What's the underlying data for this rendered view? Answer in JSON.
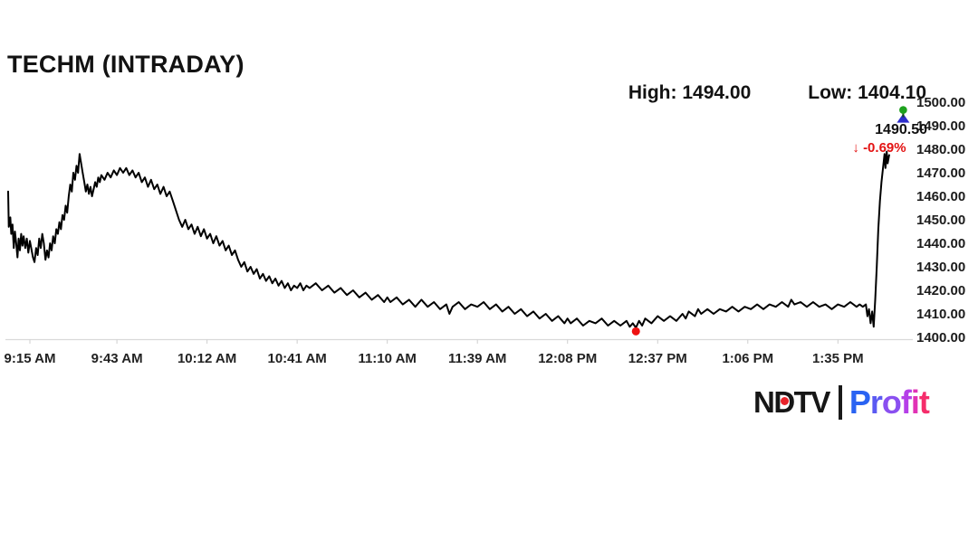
{
  "title": "TECHM (INTRADAY)",
  "stats": {
    "high": "High: 1494.00",
    "low": "Low: 1404.10"
  },
  "annotation": {
    "price": "1490.50",
    "arrow": "↓",
    "change": "-0.69%",
    "color": "#e31212"
  },
  "logo": {
    "ndtv": "NDTV",
    "profit": "Profit",
    "profit_colors": [
      "#2a63f2",
      "#5b5af2",
      "#8a50f0",
      "#b53fe8",
      "#e132b5",
      "#f52d6b"
    ],
    "dot_color": "#e8232a"
  },
  "chart_data": {
    "type": "line",
    "title": "TECHM (INTRADAY)",
    "session_high": 1494.0,
    "session_low": 1404.1,
    "last_price": 1490.5,
    "change_pct": -0.69,
    "line_color": "#000000",
    "ylim": [
      1400,
      1500
    ],
    "y_ticks": [
      "1500.00",
      "1490.00",
      "1480.00",
      "1470.00",
      "1460.00",
      "1450.00",
      "1440.00",
      "1430.00",
      "1420.00",
      "1410.00",
      "1400.00"
    ],
    "x_ticks": [
      "9:15 AM",
      "9:43 AM",
      "10:12 AM",
      "10:41 AM",
      "11:10 AM",
      "11:39 AM",
      "12:08 PM",
      "12:37 PM",
      "1:06 PM",
      "1:35 PM"
    ],
    "x_tick_minutes": [
      0,
      28,
      57,
      86,
      115,
      144,
      173,
      202,
      231,
      260
    ],
    "x_unit": "minutes after 9:15 AM (negative = pre-open)",
    "grid": false,
    "legend": false,
    "low_marker": {
      "t": 195,
      "price": 1404.1,
      "color": "#ee1111"
    },
    "high_marker": {
      "t": 281,
      "price": 1494,
      "ball_color": "#1ea21e",
      "base_color": "#2d2dcb"
    },
    "points": [
      [
        -7,
        1462
      ],
      [
        -6.8,
        1447
      ],
      [
        -6.3,
        1451
      ],
      [
        -6,
        1444
      ],
      [
        -5.6,
        1448
      ],
      [
        -5.2,
        1438
      ],
      [
        -4.8,
        1445
      ],
      [
        -4.4,
        1440
      ],
      [
        -4,
        1434
      ],
      [
        -3.6,
        1442
      ],
      [
        -3.2,
        1437
      ],
      [
        -2.8,
        1444
      ],
      [
        -2.4,
        1439
      ],
      [
        -2,
        1443
      ],
      [
        -1.5,
        1438
      ],
      [
        -1,
        1442
      ],
      [
        -0.5,
        1436
      ],
      [
        0,
        1441
      ],
      [
        1,
        1434
      ],
      [
        1.5,
        1432
      ],
      [
        2,
        1438
      ],
      [
        2.5,
        1435
      ],
      [
        3,
        1442
      ],
      [
        3.5,
        1438
      ],
      [
        4,
        1444
      ],
      [
        4.5,
        1440
      ],
      [
        5,
        1433
      ],
      [
        5.5,
        1437
      ],
      [
        6,
        1434
      ],
      [
        6.5,
        1440
      ],
      [
        7,
        1437
      ],
      [
        7.5,
        1443
      ],
      [
        8,
        1440
      ],
      [
        8.5,
        1446
      ],
      [
        9,
        1444
      ],
      [
        9.5,
        1449
      ],
      [
        10,
        1446
      ],
      [
        10.5,
        1452
      ],
      [
        11,
        1450
      ],
      [
        11.5,
        1456
      ],
      [
        12,
        1453
      ],
      [
        12.5,
        1460
      ],
      [
        13,
        1465
      ],
      [
        13.5,
        1462
      ],
      [
        14,
        1470
      ],
      [
        14.5,
        1467
      ],
      [
        15,
        1473
      ],
      [
        15.5,
        1470
      ],
      [
        16,
        1478
      ],
      [
        16.5,
        1474
      ],
      [
        17,
        1470
      ],
      [
        17.5,
        1466
      ],
      [
        18,
        1462
      ],
      [
        18.5,
        1465
      ],
      [
        19,
        1461
      ],
      [
        19.5,
        1464
      ],
      [
        20,
        1460
      ],
      [
        20.5,
        1463
      ],
      [
        21,
        1466
      ],
      [
        21.5,
        1464
      ],
      [
        22,
        1468
      ],
      [
        22.5,
        1466
      ],
      [
        23,
        1469
      ],
      [
        24,
        1467
      ],
      [
        25,
        1470
      ],
      [
        26,
        1468
      ],
      [
        27,
        1471
      ],
      [
        28,
        1469
      ],
      [
        29,
        1472
      ],
      [
        30,
        1470
      ],
      [
        31,
        1472
      ],
      [
        32,
        1469
      ],
      [
        33,
        1471
      ],
      [
        34,
        1468
      ],
      [
        35,
        1470
      ],
      [
        36,
        1466
      ],
      [
        37,
        1468
      ],
      [
        38,
        1464
      ],
      [
        39,
        1467
      ],
      [
        40,
        1463
      ],
      [
        41,
        1465
      ],
      [
        42,
        1461
      ],
      [
        43,
        1464
      ],
      [
        44,
        1460
      ],
      [
        45,
        1462
      ],
      [
        46,
        1458
      ],
      [
        47,
        1454
      ],
      [
        48,
        1450
      ],
      [
        49,
        1447
      ],
      [
        50,
        1450
      ],
      [
        51,
        1446
      ],
      [
        52,
        1448
      ],
      [
        53,
        1444
      ],
      [
        54,
        1447
      ],
      [
        55,
        1443
      ],
      [
        56,
        1446
      ],
      [
        57,
        1442
      ],
      [
        58,
        1444
      ],
      [
        59,
        1440
      ],
      [
        60,
        1443
      ],
      [
        61,
        1439
      ],
      [
        62,
        1441
      ],
      [
        63,
        1437
      ],
      [
        64,
        1439
      ],
      [
        65,
        1435
      ],
      [
        66,
        1437
      ],
      [
        67,
        1433
      ],
      [
        68,
        1430
      ],
      [
        69,
        1432
      ],
      [
        70,
        1428
      ],
      [
        71,
        1430
      ],
      [
        72,
        1427
      ],
      [
        73,
        1429
      ],
      [
        74,
        1425
      ],
      [
        75,
        1427
      ],
      [
        76,
        1424
      ],
      [
        77,
        1426
      ],
      [
        78,
        1423
      ],
      [
        79,
        1425
      ],
      [
        80,
        1422
      ],
      [
        81,
        1424
      ],
      [
        82,
        1421
      ],
      [
        83,
        1423
      ],
      [
        84,
        1420
      ],
      [
        85,
        1422
      ],
      [
        86,
        1421
      ],
      [
        87,
        1423
      ],
      [
        88,
        1420
      ],
      [
        89,
        1422
      ],
      [
        90,
        1421
      ],
      [
        92,
        1423
      ],
      [
        94,
        1420
      ],
      [
        96,
        1422
      ],
      [
        98,
        1419
      ],
      [
        100,
        1421
      ],
      [
        102,
        1418
      ],
      [
        104,
        1420
      ],
      [
        106,
        1417
      ],
      [
        108,
        1419
      ],
      [
        110,
        1416
      ],
      [
        112,
        1418
      ],
      [
        114,
        1415
      ],
      [
        115,
        1417
      ],
      [
        116,
        1415
      ],
      [
        118,
        1417
      ],
      [
        120,
        1414
      ],
      [
        122,
        1416
      ],
      [
        124,
        1413
      ],
      [
        126,
        1416
      ],
      [
        128,
        1413
      ],
      [
        130,
        1415
      ],
      [
        132,
        1412
      ],
      [
        134,
        1414
      ],
      [
        135,
        1410
      ],
      [
        136,
        1413
      ],
      [
        138,
        1415
      ],
      [
        140,
        1412
      ],
      [
        142,
        1414
      ],
      [
        144,
        1413
      ],
      [
        146,
        1415
      ],
      [
        148,
        1412
      ],
      [
        150,
        1414
      ],
      [
        152,
        1411
      ],
      [
        154,
        1413
      ],
      [
        156,
        1410
      ],
      [
        158,
        1412
      ],
      [
        160,
        1409
      ],
      [
        162,
        1411
      ],
      [
        164,
        1408
      ],
      [
        166,
        1410
      ],
      [
        168,
        1407
      ],
      [
        170,
        1409
      ],
      [
        172,
        1406
      ],
      [
        173,
        1408
      ],
      [
        174,
        1406
      ],
      [
        176,
        1408
      ],
      [
        178,
        1405
      ],
      [
        180,
        1407
      ],
      [
        182,
        1406
      ],
      [
        184,
        1408
      ],
      [
        186,
        1405
      ],
      [
        188,
        1407
      ],
      [
        190,
        1405
      ],
      [
        192,
        1407
      ],
      [
        193,
        1404.5
      ],
      [
        194,
        1406
      ],
      [
        195,
        1404.1
      ],
      [
        196,
        1407
      ],
      [
        197,
        1405
      ],
      [
        198,
        1408
      ],
      [
        200,
        1406
      ],
      [
        202,
        1409
      ],
      [
        204,
        1407
      ],
      [
        206,
        1409
      ],
      [
        208,
        1407
      ],
      [
        210,
        1410
      ],
      [
        211,
        1408
      ],
      [
        212,
        1411
      ],
      [
        214,
        1409
      ],
      [
        215,
        1412
      ],
      [
        216,
        1410
      ],
      [
        218,
        1412
      ],
      [
        220,
        1410
      ],
      [
        222,
        1412
      ],
      [
        224,
        1411
      ],
      [
        226,
        1413
      ],
      [
        228,
        1411
      ],
      [
        230,
        1413
      ],
      [
        232,
        1412
      ],
      [
        234,
        1414
      ],
      [
        236,
        1412
      ],
      [
        238,
        1414
      ],
      [
        240,
        1413
      ],
      [
        242,
        1415
      ],
      [
        244,
        1413
      ],
      [
        245,
        1416
      ],
      [
        246,
        1414
      ],
      [
        248,
        1415
      ],
      [
        250,
        1413
      ],
      [
        252,
        1415
      ],
      [
        254,
        1413
      ],
      [
        256,
        1414
      ],
      [
        258,
        1412
      ],
      [
        260,
        1414
      ],
      [
        262,
        1413
      ],
      [
        264,
        1415
      ],
      [
        266,
        1413
      ],
      [
        267,
        1414
      ],
      [
        268,
        1413
      ],
      [
        269,
        1414
      ],
      [
        269.5,
        1409
      ],
      [
        270,
        1412
      ],
      [
        270.5,
        1406
      ],
      [
        271,
        1411
      ],
      [
        271.5,
        1404.5
      ],
      [
        272,
        1416
      ],
      [
        272.5,
        1430
      ],
      [
        273,
        1446
      ],
      [
        273.5,
        1458
      ],
      [
        274,
        1466
      ],
      [
        274.5,
        1472
      ],
      [
        275,
        1478
      ],
      [
        275.3,
        1472
      ],
      [
        275.7,
        1479
      ],
      [
        276,
        1474
      ],
      [
        276.5,
        1477.5
      ]
    ]
  }
}
